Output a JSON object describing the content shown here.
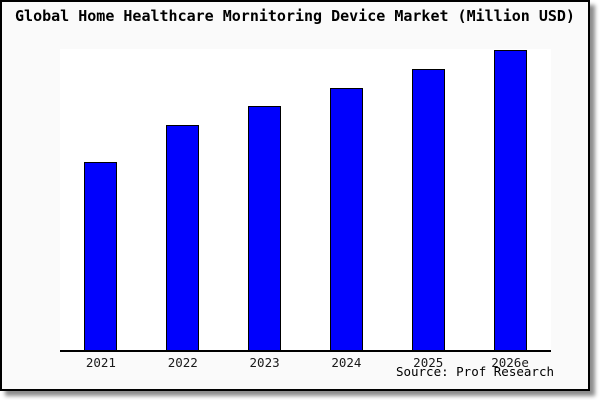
{
  "source_note": "Source: Prof Research",
  "colors": {
    "card_background": "#fafafa",
    "plot_background": "#ffffff",
    "card_border": "#000000",
    "axis_line": "#000000",
    "title_text": "#000000",
    "tick_text": "#1a1a1a",
    "bar_fill": "#0000fd",
    "bar_border": "#000000"
  },
  "chart_data": {
    "type": "bar",
    "title": "Global Home Healthcare Mornitoring Device Market (Million USD)",
    "categories": [
      "2021",
      "2022",
      "2023",
      "2024",
      "2025",
      "2026e"
    ],
    "values": [
      188,
      225,
      244,
      262,
      281,
      300
    ],
    "value_note": "No numeric y-axis is shown in the image; values are relative bar heights in pixels of the 301px-tall plot area.",
    "xlabel": "",
    "ylabel": "",
    "ylim": [
      0,
      301
    ],
    "grid": false,
    "legend": false,
    "y_axis_ticks": "none visible",
    "bar_color": "#0000fd",
    "bar_border_color": "#000000"
  }
}
